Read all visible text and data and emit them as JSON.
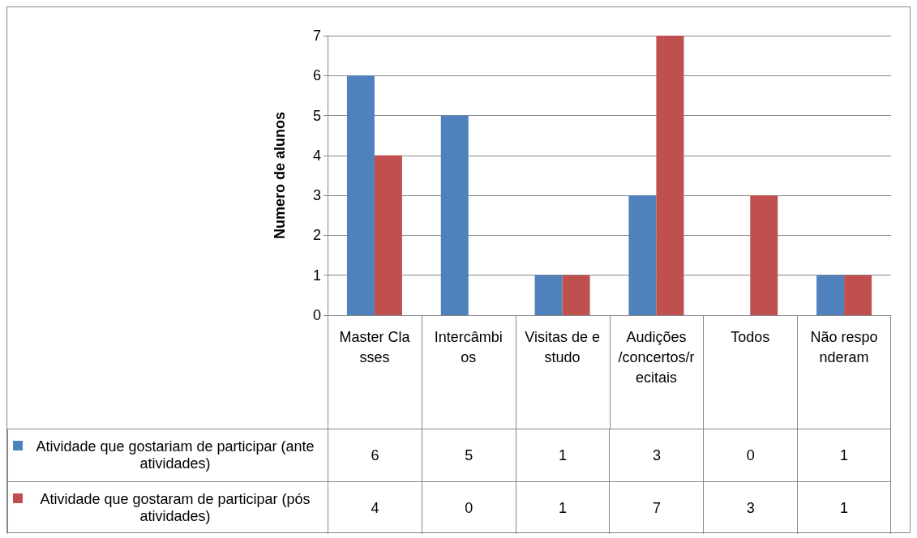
{
  "chart_data": {
    "type": "bar",
    "ylabel": "Numero de alunos",
    "categories": [
      "Master Classes",
      "Intercâmbios",
      "Visitas de estudo",
      "Audições/concertos/recitais",
      "Todos",
      "Não responderam"
    ],
    "series": [
      {
        "name": "Atividade que gostariam de participar (ante atividades)",
        "color": "#4f81bd",
        "values": [
          6,
          5,
          1,
          3,
          0,
          1
        ]
      },
      {
        "name": "Atividade que gostaram de participar (pós atividades)",
        "color": "#c0504d",
        "values": [
          4,
          0,
          1,
          7,
          3,
          1
        ]
      }
    ],
    "ylim": [
      0,
      7
    ],
    "yticks": [
      0,
      1,
      2,
      3,
      4,
      5,
      6,
      7
    ],
    "grid": "y",
    "legend": "bottom left",
    "data_labels": true
  }
}
